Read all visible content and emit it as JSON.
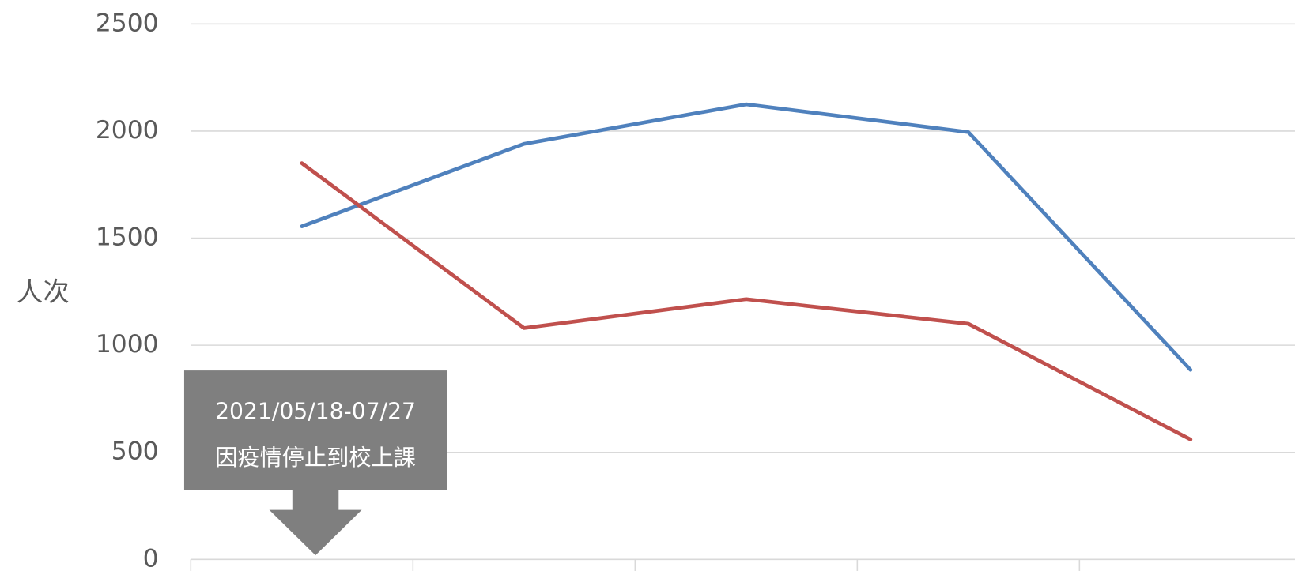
{
  "chart_data": {
    "type": "line",
    "y_label": "人次",
    "categories": [
      null,
      null,
      null,
      null,
      null
    ],
    "series": [
      {
        "color": "#4f81bd",
        "values": [
          1555,
          1940,
          2125,
          1995,
          885
        ]
      },
      {
        "color": "#c0504d",
        "values": [
          1850,
          1080,
          1215,
          1100,
          560
        ]
      }
    ],
    "ylim": [
      0,
      2500
    ],
    "yticks": [
      0,
      500,
      1000,
      1500,
      2000,
      2500
    ],
    "grid": true,
    "annotation": {
      "lines": [
        "2021/05/18-07/27",
        "因疫情停止到校上課"
      ]
    }
  }
}
